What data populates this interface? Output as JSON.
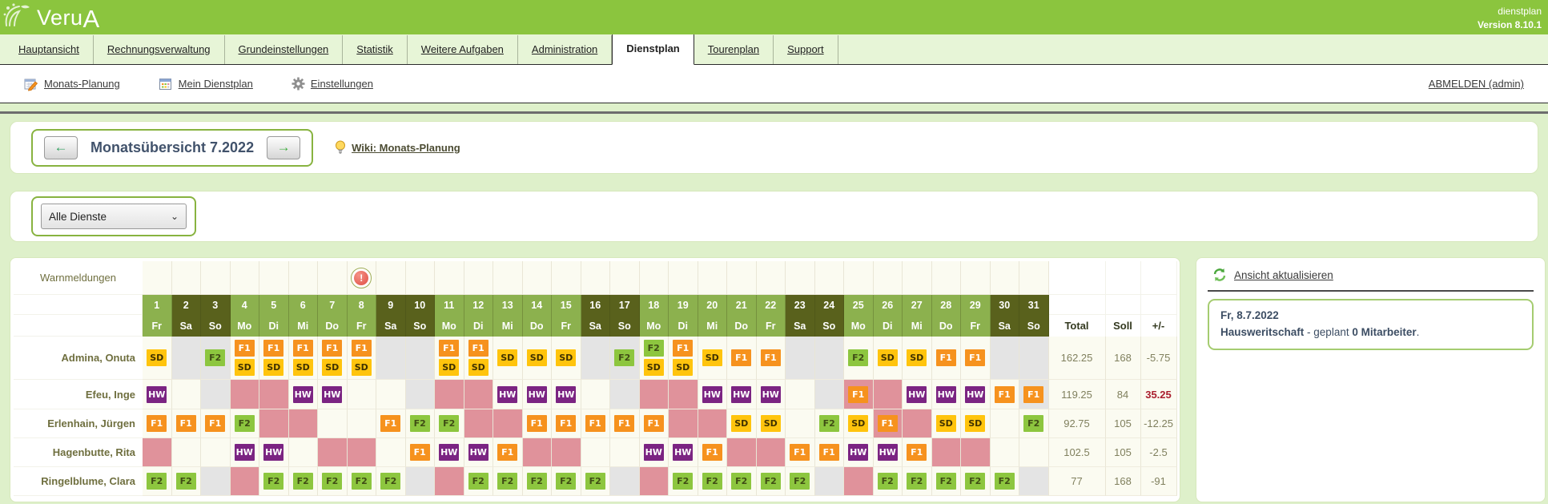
{
  "app": {
    "logo_text": "Veru",
    "logo_accent": "A",
    "product": "dienstplan",
    "version": "Version 8.10.1"
  },
  "tabs": [
    {
      "label": "Hauptansicht",
      "active": false
    },
    {
      "label": "Rechnungsverwaltung",
      "active": false
    },
    {
      "label": "Grundeinstellungen",
      "active": false
    },
    {
      "label": "Statistik",
      "active": false
    },
    {
      "label": "Weitere Aufgaben",
      "active": false
    },
    {
      "label": "Administration",
      "active": false
    },
    {
      "label": "Dienstplan",
      "active": true
    },
    {
      "label": "Tourenplan",
      "active": false
    },
    {
      "label": "Support",
      "active": false
    }
  ],
  "toolbar": {
    "items": [
      {
        "label": "Monats-Planung",
        "icon": "calendar-edit"
      },
      {
        "label": "Mein Dienstplan",
        "icon": "calendar"
      },
      {
        "label": "Einstellungen",
        "icon": "gear"
      }
    ],
    "logout": "ABMELDEN (admin)"
  },
  "monthnav": {
    "title": "Monatsübersicht 7.2022",
    "prev_arrow": "←",
    "next_arrow": "→",
    "wiki": "Wiki: Monats-Planung"
  },
  "filter": {
    "selected": "Alle Dienste"
  },
  "roster": {
    "warning_label": "Warnmeldungen",
    "warning_day": 8,
    "day_numbers": [
      1,
      2,
      3,
      4,
      5,
      6,
      7,
      8,
      9,
      10,
      11,
      12,
      13,
      14,
      15,
      16,
      17,
      18,
      19,
      20,
      21,
      22,
      23,
      24,
      25,
      26,
      27,
      28,
      29,
      30,
      31
    ],
    "weekdays": [
      "Fr",
      "Sa",
      "So",
      "Mo",
      "Di",
      "Mi",
      "Do",
      "Fr",
      "Sa",
      "So",
      "Mo",
      "Di",
      "Mi",
      "Do",
      "Fr",
      "Sa",
      "So",
      "Mo",
      "Di",
      "Mi",
      "Do",
      "Fr",
      "Sa",
      "So",
      "Mo",
      "Di",
      "Mi",
      "Do",
      "Fr",
      "Sa",
      "So"
    ],
    "totals_headers": [
      "Total",
      "Soll",
      "+/-"
    ],
    "legend": {
      "SD": {
        "bg": "#ffc40d",
        "fg": "#403200"
      },
      "F1": {
        "bg": "#f6921e",
        "fg": "#ffffff"
      },
      "F2": {
        "bg": "#8dc63f",
        "fg": "#3f4c15"
      },
      "HW": {
        "bg": "#7b2482",
        "fg": "#ffffff"
      }
    },
    "cell_colors": {
      "free_gray": "#e4e4e4",
      "absence_pink": "#e0929b",
      "workday": "#fbfbf1"
    },
    "employees": [
      {
        "name": "Admina, Onuta",
        "cells": [
          "SD",
          "#",
          "F2@#",
          "F1+SD",
          "F1+SD",
          "F1+SD",
          "F1+SD",
          "F1+SD",
          "#",
          "#",
          "F1+SD",
          "F1+SD",
          "SD",
          "SD",
          "SD",
          "#",
          "F2@#",
          "F2+SD",
          "F1+SD",
          "SD",
          "F1",
          "F1",
          "#",
          "#",
          "F2",
          "SD",
          "SD",
          "F1",
          "F1",
          "#",
          "#"
        ],
        "total": "162.25",
        "soll": "168",
        "diff": "-5.75",
        "diff_red": false
      },
      {
        "name": "Efeu, Inge",
        "cells": [
          "HW",
          "",
          "#",
          "P",
          "P",
          "HW",
          "HW",
          "",
          "",
          "#",
          "P",
          "P",
          "HW",
          "HW",
          "HW",
          "",
          "#",
          "P",
          "P",
          "HW",
          "HW",
          "HW",
          "",
          "#",
          "F1@P",
          "P",
          "HW",
          "HW",
          "HW",
          "F1",
          "F1@#"
        ],
        "total": "119.25",
        "soll": "84",
        "diff": "35.25",
        "diff_red": true
      },
      {
        "name": "Erlenhain, Jürgen",
        "cells": [
          "F1",
          "F1",
          "F1",
          "F2",
          "P",
          "P",
          "",
          "",
          "F1",
          "F2",
          "F2",
          "P",
          "P",
          "F1",
          "F1",
          "F1",
          "F1",
          "F1",
          "P",
          "P",
          "SD",
          "SD",
          "",
          "F2",
          "SD",
          "F1@P",
          "P",
          "SD",
          "SD",
          "",
          "F2"
        ],
        "total": "92.75",
        "soll": "105",
        "diff": "-12.25",
        "diff_red": false
      },
      {
        "name": "Hagenbutte, Rita",
        "cells": [
          "P",
          "",
          "",
          "HW",
          "HW",
          "",
          "P",
          "P",
          "",
          "F1",
          "HW",
          "HW",
          "F1",
          "P",
          "P",
          "",
          "",
          "HW",
          "HW",
          "F1",
          "P",
          "P",
          "F1",
          "F1",
          "HW",
          "HW",
          "F1",
          "P",
          "P",
          "",
          ""
        ],
        "total": "102.5",
        "soll": "105",
        "diff": "-2.5",
        "diff_red": false
      },
      {
        "name": "Ringelblume, Clara",
        "cells": [
          "F2",
          "F2",
          "#",
          "P",
          "F2",
          "F2",
          "F2",
          "F2",
          "F2",
          "#",
          "P",
          "F2",
          "F2",
          "F2",
          "F2",
          "F2",
          "#",
          "P",
          "F2",
          "F2",
          "F2",
          "F2",
          "F2",
          "#",
          "P",
          "F2",
          "F2",
          "F2",
          "F2",
          "F2",
          "#"
        ],
        "total": "77",
        "soll": "168",
        "diff": "-91",
        "diff_red": false
      }
    ]
  },
  "side": {
    "refresh_label": "Ansicht aktualisieren",
    "date": "Fr, 8.7.2022",
    "info_bold1": "Hausweritschaft",
    "info_mid": " - geplant ",
    "info_bold2": "0 Mitarbeiter",
    "info_end": "."
  },
  "colors": {
    "header_green": "#8bc53e",
    "page_bg": "#def0ca",
    "head_light": "#8cb14e",
    "head_dark": "#59611c",
    "diff_negative": "#80805e",
    "diff_alert_red": "#aa1e2e"
  }
}
